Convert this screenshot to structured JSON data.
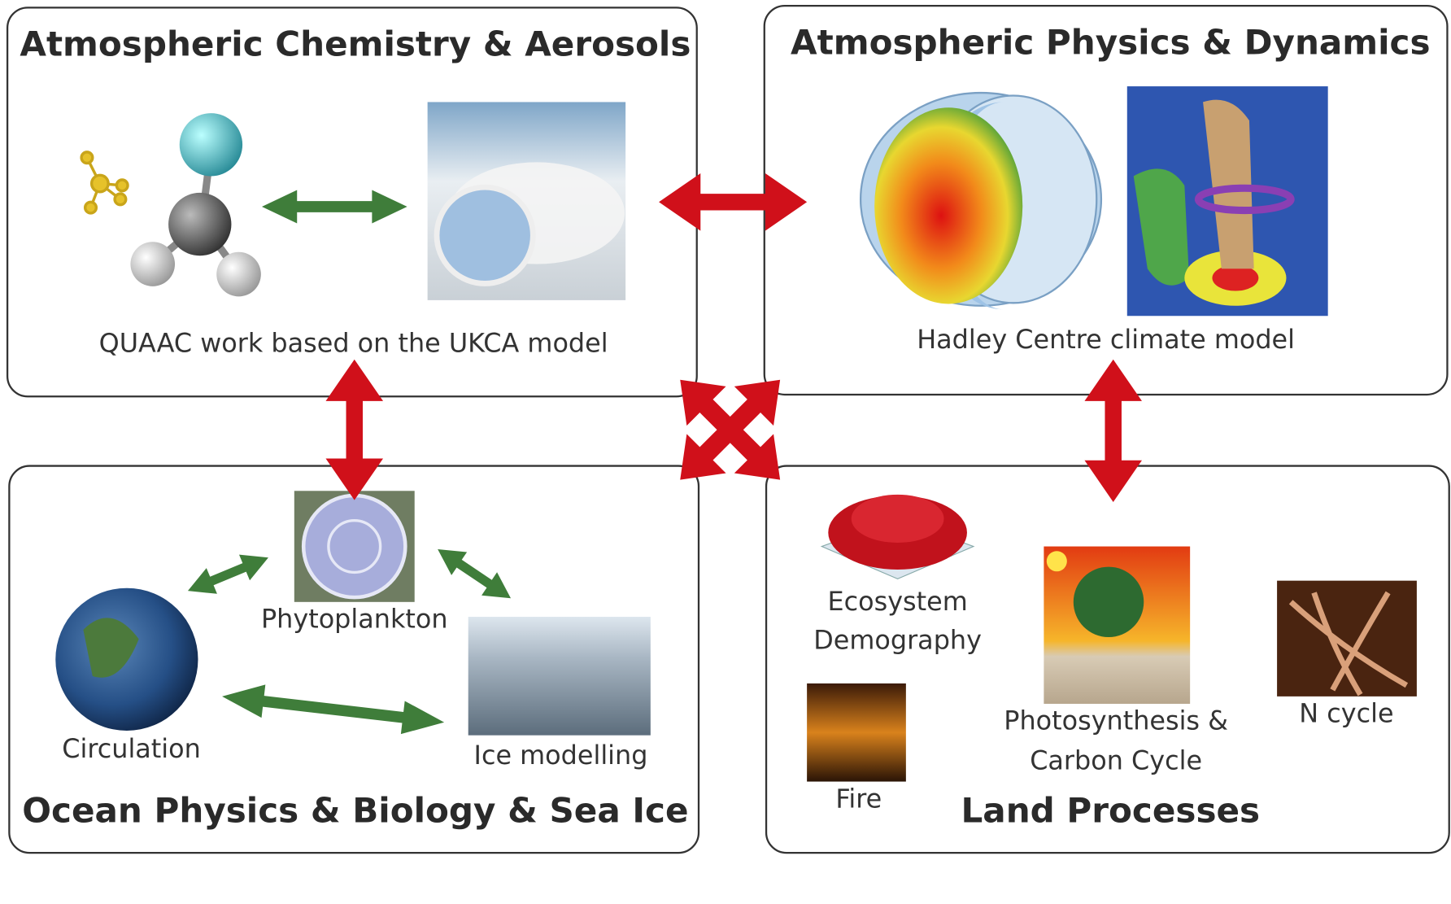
{
  "panels": [
    {
      "title": "Atmospheric Chemistry & Aerosols",
      "items": [
        {
          "lines": [
            "QUAAC work based on the UKCA model"
          ]
        }
      ]
    },
    {
      "title": "Atmospheric Physics & Dynamics",
      "items": [
        {
          "lines": [
            "Hadley Centre climate model"
          ]
        }
      ]
    },
    {
      "title": "Ocean Physics & Biology & Sea Ice",
      "items": [
        {
          "lines": [
            "Phytoplankton"
          ]
        },
        {
          "lines": [
            "Circulation"
          ]
        },
        {
          "lines": [
            "Ice modelling"
          ]
        }
      ]
    },
    {
      "title": "Land Processes",
      "items": [
        {
          "lines": [
            "Ecosystem",
            "Demography"
          ]
        },
        {
          "lines": [
            "Photosynthesis &",
            "Carbon Cycle"
          ]
        },
        {
          "lines": [
            "N cycle"
          ]
        },
        {
          "lines": [
            "Fire"
          ]
        }
      ]
    }
  ]
}
